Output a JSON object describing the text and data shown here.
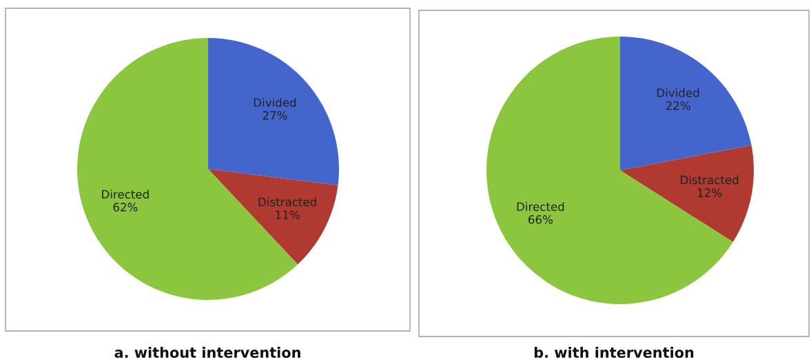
{
  "chart_data": [
    {
      "type": "pie",
      "title": "a. without intervention",
      "categories": [
        "Divided",
        "Distracted",
        "Directed"
      ],
      "values": [
        27,
        11,
        62
      ],
      "value_labels": [
        "27%",
        "11%",
        "62%"
      ],
      "colors": [
        "#4466cc",
        "#b03a32",
        "#8cc63f"
      ],
      "legend": false
    },
    {
      "type": "pie",
      "title": "b. with intervention",
      "categories": [
        "Divided",
        "Distracted",
        "Directed"
      ],
      "values": [
        22,
        12,
        66
      ],
      "value_labels": [
        "22%",
        "12%",
        "66%"
      ],
      "colors": [
        "#4466cc",
        "#b03a32",
        "#8cc63f"
      ],
      "legend": false
    }
  ]
}
